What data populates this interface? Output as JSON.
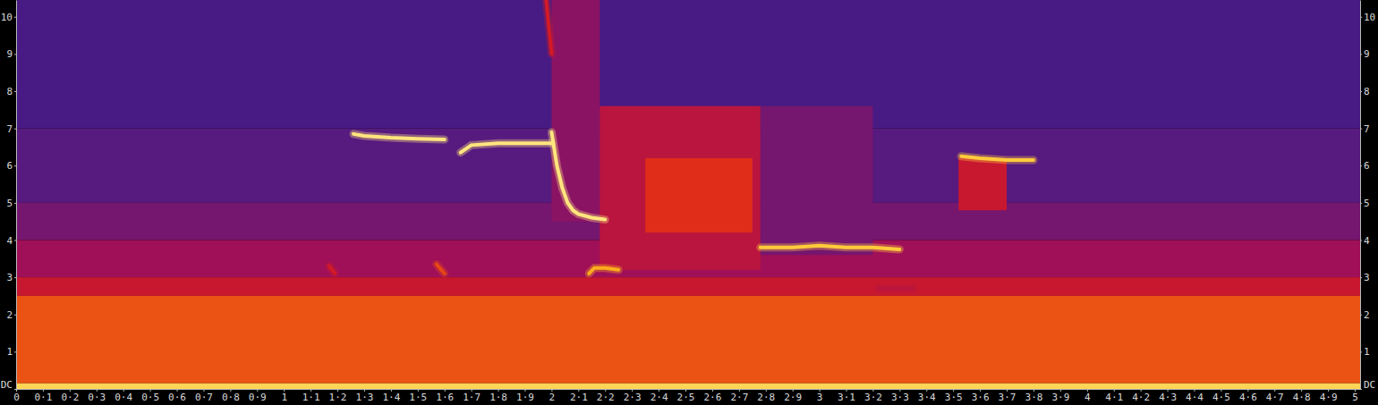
{
  "chart_data": {
    "type": "spectrogram",
    "xlim": [
      0,
      5.02
    ],
    "ylim": [
      0,
      10.45
    ],
    "zlim": [
      0,
      1
    ],
    "xticks": [
      0,
      {
        "value": 0.1,
        "label": "0·1"
      },
      {
        "value": 0.2,
        "label": "0·2"
      },
      {
        "value": 0.3,
        "label": "0·3"
      },
      {
        "value": 0.4,
        "label": "0·4"
      },
      {
        "value": 0.5,
        "label": "0·5"
      },
      {
        "value": 0.6,
        "label": "0·6"
      },
      {
        "value": 0.7,
        "label": "0·7"
      },
      {
        "value": 0.8,
        "label": "0·8"
      },
      {
        "value": 0.9,
        "label": "0·9"
      },
      1,
      {
        "value": 1.1,
        "label": "1·1"
      },
      {
        "value": 1.2,
        "label": "1·2"
      },
      {
        "value": 1.3,
        "label": "1·3"
      },
      {
        "value": 1.4,
        "label": "1·4"
      },
      {
        "value": 1.5,
        "label": "1·5"
      },
      {
        "value": 1.6,
        "label": "1·6"
      },
      {
        "value": 1.7,
        "label": "1·7"
      },
      {
        "value": 1.8,
        "label": "1·8"
      },
      {
        "value": 1.9,
        "label": "1·9"
      },
      2,
      {
        "value": 2.1,
        "label": "2·1"
      },
      {
        "value": 2.2,
        "label": "2·2"
      },
      {
        "value": 2.3,
        "label": "2·3"
      },
      {
        "value": 2.4,
        "label": "2·4"
      },
      {
        "value": 2.5,
        "label": "2·5"
      },
      {
        "value": 2.6,
        "label": "2·6"
      },
      {
        "value": 2.7,
        "label": "2·7"
      },
      {
        "value": 2.8,
        "label": "2·8"
      },
      {
        "value": 2.9,
        "label": "2·9"
      },
      3,
      {
        "value": 3.1,
        "label": "3·1"
      },
      {
        "value": 3.2,
        "label": "3·2"
      },
      {
        "value": 3.3,
        "label": "3·3"
      },
      {
        "value": 3.4,
        "label": "3·4"
      },
      {
        "value": 3.5,
        "label": "3·5"
      },
      {
        "value": 3.6,
        "label": "3·6"
      },
      {
        "value": 3.7,
        "label": "3·7"
      },
      {
        "value": 3.8,
        "label": "3·8"
      },
      {
        "value": 3.9,
        "label": "3·9"
      },
      4,
      {
        "value": 4.1,
        "label": "4·1"
      },
      {
        "value": 4.2,
        "label": "4·2"
      },
      {
        "value": 4.3,
        "label": "4·3"
      },
      {
        "value": 4.4,
        "label": "4·4"
      },
      {
        "value": 4.5,
        "label": "4·5"
      },
      {
        "value": 4.6,
        "label": "4·6"
      },
      {
        "value": 4.7,
        "label": "4·7"
      },
      {
        "value": 4.8,
        "label": "4·8"
      },
      {
        "value": 4.9,
        "label": "4·9"
      },
      5
    ],
    "yticks": [
      {
        "value": 0,
        "label": "DC"
      },
      1,
      2,
      3,
      4,
      5,
      6,
      7,
      8,
      9,
      10
    ],
    "cells": [
      {
        "x": [
          0,
          5.02
        ],
        "y": [
          7,
          10.45
        ],
        "value": 0.28
      },
      {
        "x": [
          0,
          5.02
        ],
        "y": [
          5,
          7
        ],
        "value": 0.33
      },
      {
        "x": [
          0,
          5.02
        ],
        "y": [
          4,
          5
        ],
        "value": 0.4
      },
      {
        "x": [
          0,
          5.02
        ],
        "y": [
          3,
          4
        ],
        "value": 0.5
      },
      {
        "x": [
          0,
          5.02
        ],
        "y": [
          2.5,
          3
        ],
        "value": 0.58
      },
      {
        "x": [
          0,
          5.02
        ],
        "y": [
          0.15,
          2.5
        ],
        "value": 0.72
      },
      {
        "x": [
          0,
          5.02
        ],
        "y": [
          0,
          0.15
        ],
        "value": 0.92
      },
      {
        "x": [
          2.0,
          2.18
        ],
        "y": [
          4.5,
          10.45
        ],
        "value": 0.45
      },
      {
        "x": [
          2.78,
          3.2
        ],
        "y": [
          3.6,
          7.6
        ],
        "value": 0.4
      },
      {
        "x": [
          2.18,
          2.78
        ],
        "y": [
          3.2,
          7.6
        ],
        "value": 0.55
      },
      {
        "x": [
          2.35,
          2.75
        ],
        "y": [
          4.2,
          6.2
        ],
        "value": 0.65
      },
      {
        "x": [
          3.52,
          3.7
        ],
        "y": [
          4.8,
          6.2
        ],
        "value": 0.58
      }
    ],
    "series": [
      {
        "x": [
          1.26,
          1.3,
          1.4,
          1.5,
          1.6
        ],
        "values": [
          6.85,
          6.8,
          6.75,
          6.72,
          6.7
        ],
        "level": 0.95
      },
      {
        "x": [
          1.66,
          1.7,
          1.8,
          1.9,
          2.0
        ],
        "values": [
          6.35,
          6.55,
          6.6,
          6.6,
          6.6
        ],
        "level": 0.95
      },
      {
        "x": [
          2.0,
          2.02,
          2.04,
          2.06,
          2.08,
          2.1,
          2.15,
          2.2
        ],
        "values": [
          6.9,
          6.0,
          5.4,
          5.0,
          4.8,
          4.7,
          4.6,
          4.55
        ],
        "level": 0.95
      },
      {
        "x": [
          2.14,
          2.16,
          2.2,
          2.25
        ],
        "values": [
          3.1,
          3.25,
          3.25,
          3.2
        ],
        "level": 0.85
      },
      {
        "x": [
          2.78,
          2.9,
          3.0,
          3.1,
          3.2,
          3.3
        ],
        "values": [
          3.8,
          3.8,
          3.85,
          3.8,
          3.8,
          3.75
        ],
        "level": 0.9
      },
      {
        "x": [
          3.53,
          3.6,
          3.7,
          3.8
        ],
        "values": [
          6.25,
          6.2,
          6.15,
          6.15
        ],
        "level": 0.9
      },
      {
        "x": [
          1.17,
          1.19
        ],
        "values": [
          3.3,
          3.1
        ],
        "level": 0.6
      },
      {
        "x": [
          1.57,
          1.6
        ],
        "values": [
          3.35,
          3.1
        ],
        "level": 0.7
      },
      {
        "x": [
          3.22,
          3.35
        ],
        "values": [
          2.7,
          2.7
        ],
        "level": 0.55
      },
      {
        "x": [
          1.98,
          2.0
        ],
        "values": [
          10.45,
          9.0
        ],
        "level": 0.6
      }
    ]
  }
}
